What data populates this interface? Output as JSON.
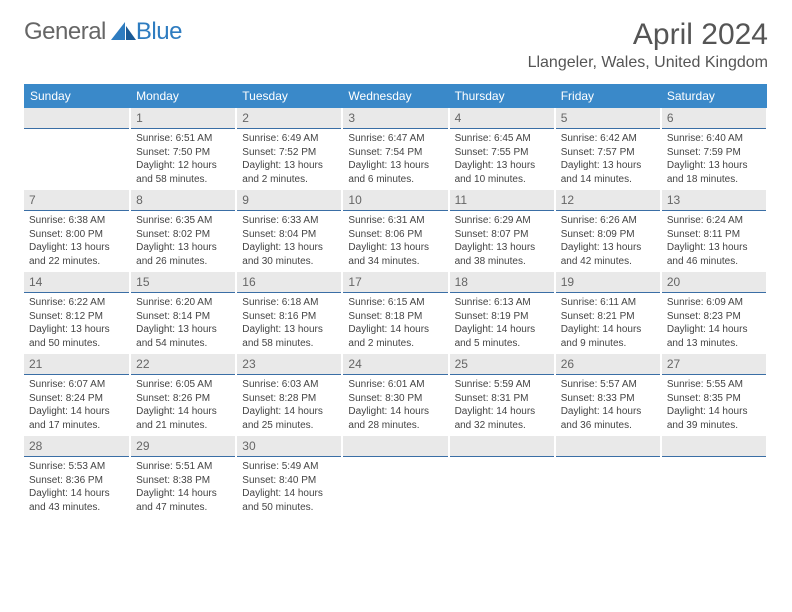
{
  "brand": {
    "part1": "General",
    "part2": "Blue"
  },
  "title": "April 2024",
  "location": "Llangeler, Wales, United Kingdom",
  "colors": {
    "header_bg": "#3a89c9",
    "header_text": "#ffffff",
    "daynum_bg": "#e9e9e9",
    "daynum_border": "#3a6ea5",
    "brand_gray": "#666666",
    "brand_blue": "#2e7cc0"
  },
  "weekdays": [
    "Sunday",
    "Monday",
    "Tuesday",
    "Wednesday",
    "Thursday",
    "Friday",
    "Saturday"
  ],
  "weeks": [
    [
      {
        "n": "",
        "sr": "",
        "ss": "",
        "d1": "",
        "d2": ""
      },
      {
        "n": "1",
        "sr": "Sunrise: 6:51 AM",
        "ss": "Sunset: 7:50 PM",
        "d1": "Daylight: 12 hours",
        "d2": "and 58 minutes."
      },
      {
        "n": "2",
        "sr": "Sunrise: 6:49 AM",
        "ss": "Sunset: 7:52 PM",
        "d1": "Daylight: 13 hours",
        "d2": "and 2 minutes."
      },
      {
        "n": "3",
        "sr": "Sunrise: 6:47 AM",
        "ss": "Sunset: 7:54 PM",
        "d1": "Daylight: 13 hours",
        "d2": "and 6 minutes."
      },
      {
        "n": "4",
        "sr": "Sunrise: 6:45 AM",
        "ss": "Sunset: 7:55 PM",
        "d1": "Daylight: 13 hours",
        "d2": "and 10 minutes."
      },
      {
        "n": "5",
        "sr": "Sunrise: 6:42 AM",
        "ss": "Sunset: 7:57 PM",
        "d1": "Daylight: 13 hours",
        "d2": "and 14 minutes."
      },
      {
        "n": "6",
        "sr": "Sunrise: 6:40 AM",
        "ss": "Sunset: 7:59 PM",
        "d1": "Daylight: 13 hours",
        "d2": "and 18 minutes."
      }
    ],
    [
      {
        "n": "7",
        "sr": "Sunrise: 6:38 AM",
        "ss": "Sunset: 8:00 PM",
        "d1": "Daylight: 13 hours",
        "d2": "and 22 minutes."
      },
      {
        "n": "8",
        "sr": "Sunrise: 6:35 AM",
        "ss": "Sunset: 8:02 PM",
        "d1": "Daylight: 13 hours",
        "d2": "and 26 minutes."
      },
      {
        "n": "9",
        "sr": "Sunrise: 6:33 AM",
        "ss": "Sunset: 8:04 PM",
        "d1": "Daylight: 13 hours",
        "d2": "and 30 minutes."
      },
      {
        "n": "10",
        "sr": "Sunrise: 6:31 AM",
        "ss": "Sunset: 8:06 PM",
        "d1": "Daylight: 13 hours",
        "d2": "and 34 minutes."
      },
      {
        "n": "11",
        "sr": "Sunrise: 6:29 AM",
        "ss": "Sunset: 8:07 PM",
        "d1": "Daylight: 13 hours",
        "d2": "and 38 minutes."
      },
      {
        "n": "12",
        "sr": "Sunrise: 6:26 AM",
        "ss": "Sunset: 8:09 PM",
        "d1": "Daylight: 13 hours",
        "d2": "and 42 minutes."
      },
      {
        "n": "13",
        "sr": "Sunrise: 6:24 AM",
        "ss": "Sunset: 8:11 PM",
        "d1": "Daylight: 13 hours",
        "d2": "and 46 minutes."
      }
    ],
    [
      {
        "n": "14",
        "sr": "Sunrise: 6:22 AM",
        "ss": "Sunset: 8:12 PM",
        "d1": "Daylight: 13 hours",
        "d2": "and 50 minutes."
      },
      {
        "n": "15",
        "sr": "Sunrise: 6:20 AM",
        "ss": "Sunset: 8:14 PM",
        "d1": "Daylight: 13 hours",
        "d2": "and 54 minutes."
      },
      {
        "n": "16",
        "sr": "Sunrise: 6:18 AM",
        "ss": "Sunset: 8:16 PM",
        "d1": "Daylight: 13 hours",
        "d2": "and 58 minutes."
      },
      {
        "n": "17",
        "sr": "Sunrise: 6:15 AM",
        "ss": "Sunset: 8:18 PM",
        "d1": "Daylight: 14 hours",
        "d2": "and 2 minutes."
      },
      {
        "n": "18",
        "sr": "Sunrise: 6:13 AM",
        "ss": "Sunset: 8:19 PM",
        "d1": "Daylight: 14 hours",
        "d2": "and 5 minutes."
      },
      {
        "n": "19",
        "sr": "Sunrise: 6:11 AM",
        "ss": "Sunset: 8:21 PM",
        "d1": "Daylight: 14 hours",
        "d2": "and 9 minutes."
      },
      {
        "n": "20",
        "sr": "Sunrise: 6:09 AM",
        "ss": "Sunset: 8:23 PM",
        "d1": "Daylight: 14 hours",
        "d2": "and 13 minutes."
      }
    ],
    [
      {
        "n": "21",
        "sr": "Sunrise: 6:07 AM",
        "ss": "Sunset: 8:24 PM",
        "d1": "Daylight: 14 hours",
        "d2": "and 17 minutes."
      },
      {
        "n": "22",
        "sr": "Sunrise: 6:05 AM",
        "ss": "Sunset: 8:26 PM",
        "d1": "Daylight: 14 hours",
        "d2": "and 21 minutes."
      },
      {
        "n": "23",
        "sr": "Sunrise: 6:03 AM",
        "ss": "Sunset: 8:28 PM",
        "d1": "Daylight: 14 hours",
        "d2": "and 25 minutes."
      },
      {
        "n": "24",
        "sr": "Sunrise: 6:01 AM",
        "ss": "Sunset: 8:30 PM",
        "d1": "Daylight: 14 hours",
        "d2": "and 28 minutes."
      },
      {
        "n": "25",
        "sr": "Sunrise: 5:59 AM",
        "ss": "Sunset: 8:31 PM",
        "d1": "Daylight: 14 hours",
        "d2": "and 32 minutes."
      },
      {
        "n": "26",
        "sr": "Sunrise: 5:57 AM",
        "ss": "Sunset: 8:33 PM",
        "d1": "Daylight: 14 hours",
        "d2": "and 36 minutes."
      },
      {
        "n": "27",
        "sr": "Sunrise: 5:55 AM",
        "ss": "Sunset: 8:35 PM",
        "d1": "Daylight: 14 hours",
        "d2": "and 39 minutes."
      }
    ],
    [
      {
        "n": "28",
        "sr": "Sunrise: 5:53 AM",
        "ss": "Sunset: 8:36 PM",
        "d1": "Daylight: 14 hours",
        "d2": "and 43 minutes."
      },
      {
        "n": "29",
        "sr": "Sunrise: 5:51 AM",
        "ss": "Sunset: 8:38 PM",
        "d1": "Daylight: 14 hours",
        "d2": "and 47 minutes."
      },
      {
        "n": "30",
        "sr": "Sunrise: 5:49 AM",
        "ss": "Sunset: 8:40 PM",
        "d1": "Daylight: 14 hours",
        "d2": "and 50 minutes."
      },
      {
        "n": "",
        "sr": "",
        "ss": "",
        "d1": "",
        "d2": ""
      },
      {
        "n": "",
        "sr": "",
        "ss": "",
        "d1": "",
        "d2": ""
      },
      {
        "n": "",
        "sr": "",
        "ss": "",
        "d1": "",
        "d2": ""
      },
      {
        "n": "",
        "sr": "",
        "ss": "",
        "d1": "",
        "d2": ""
      }
    ]
  ]
}
